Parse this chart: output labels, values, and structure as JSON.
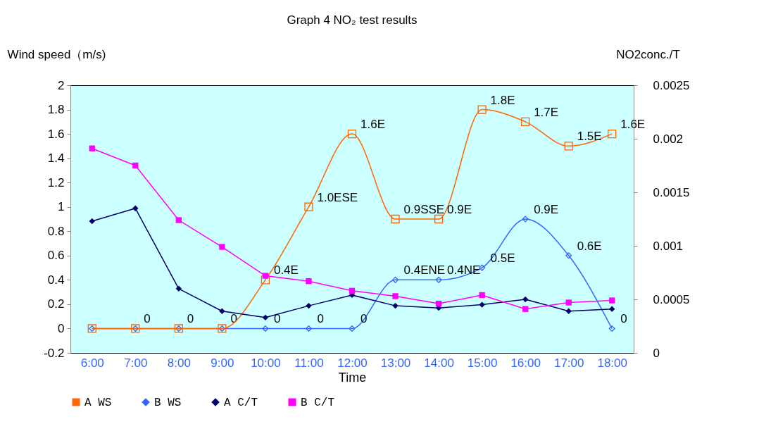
{
  "chart_data": {
    "type": "line",
    "title": "Graph 4 NO₂ test results",
    "xlabel": "Time",
    "ylabel": "Wind speed（m/s)",
    "y2label": "NO2conc./T",
    "categories": [
      "6:00",
      "7:00",
      "8:00",
      "9:00",
      "10:00",
      "11:00",
      "12:00",
      "13:00",
      "14:00",
      "15:00",
      "16:00",
      "17:00",
      "18:00"
    ],
    "ylim": [
      -0.2,
      2
    ],
    "yticks": [
      -0.2,
      0,
      0.2,
      0.4,
      0.6,
      0.8,
      1,
      1.2,
      1.4,
      1.6,
      1.8,
      2
    ],
    "y2lim": [
      0,
      0.0025
    ],
    "y2ticks": [
      0,
      0.0005,
      0.001,
      0.0015,
      0.002,
      0.0025
    ],
    "grid": false,
    "legend": "bottom",
    "series": [
      {
        "name": "A WS",
        "color": "#ff6600",
        "marker": "square",
        "values": [
          0,
          0,
          0,
          0,
          0.4,
          1.0,
          1.6,
          0.9,
          0.9,
          1.8,
          1.7,
          1.5,
          1.6
        ],
        "value_labels": [
          null,
          null,
          null,
          null,
          "0.4E",
          "1.0ESE",
          "1.6E",
          "0.9SSE",
          "0.9E",
          "1.8E",
          "1.7E",
          "1.5E",
          "1.6E"
        ]
      },
      {
        "name": "B WS",
        "color": "#3366ff",
        "marker": "diamond",
        "values": [
          0,
          0,
          0,
          0,
          0,
          0,
          0,
          0.4,
          0.4,
          0.5,
          0.9,
          0.6,
          0
        ],
        "value_labels": [
          null,
          "0",
          "0",
          "0",
          "0",
          "0",
          "0",
          "0.4ENE",
          "0.4NE",
          "0.5E",
          "0.9E",
          "0.6E",
          "0"
        ]
      },
      {
        "name": "A C/T",
        "color": "#000066",
        "marker": "diamond",
        "axis": "y2",
        "values": [
          0.00123,
          0.00135,
          0.0006,
          0.00039,
          0.00033,
          0.00044,
          0.00054,
          0.00044,
          0.00042,
          0.00045,
          0.0005,
          0.00039,
          0.00041
        ]
      },
      {
        "name": "B C/T",
        "color": "#ff00ff",
        "marker": "square",
        "axis": "y2",
        "values": [
          0.00191,
          0.00175,
          0.00124,
          0.00099,
          0.00072,
          0.00067,
          0.00058,
          0.00053,
          0.00046,
          0.00054,
          0.00041,
          0.00047,
          0.00049
        ]
      }
    ]
  }
}
